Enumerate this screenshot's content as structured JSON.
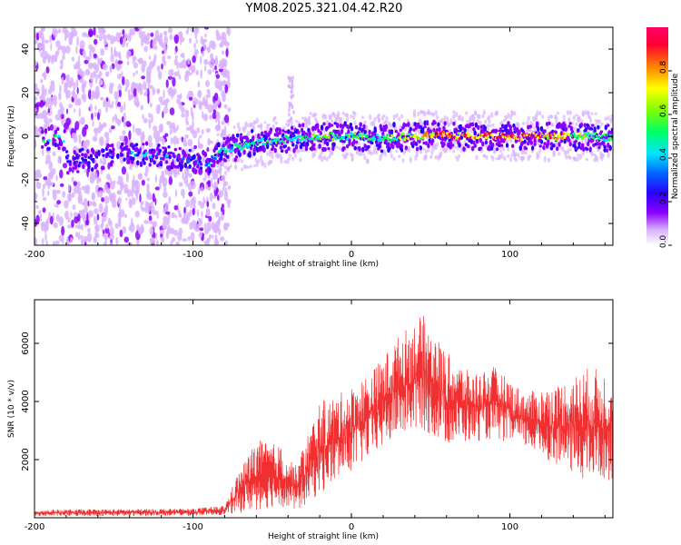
{
  "title": "YM08.2025.321.04.42.R20",
  "chart_data": [
    {
      "type": "heatmap",
      "name": "spectrogram",
      "xlabel": "Height of straight line (km)",
      "ylabel": "Frequency (Hz)",
      "xlim": [
        -200,
        165
      ],
      "ylim": [
        -50,
        50
      ],
      "xticks": [
        -200,
        -100,
        0,
        100
      ],
      "yticks": [
        -40,
        -20,
        0,
        20,
        40
      ],
      "colorbar": {
        "label": "Normalized spectral amplitude",
        "range": [
          0.0,
          1.0
        ],
        "ticks": [
          0.0,
          0.2,
          0.4,
          0.6,
          0.8
        ],
        "tick_labels": [
          "0.0",
          "0.2",
          "0.4",
          "0.6",
          "0.8"
        ],
        "colormap": [
          "#ffffff",
          "#d9b3ff",
          "#8b00ff",
          "#2a00ff",
          "#0066ff",
          "#00e5ff",
          "#00ff66",
          "#80ff00",
          "#ffff00",
          "#ff8000",
          "#ff0033",
          "#ff0066"
        ]
      },
      "noise_region_x": [
        -200,
        -85
      ],
      "signal_track": [
        {
          "x": -180,
          "f": -12,
          "amp": 0.35
        },
        {
          "x": -150,
          "f": -9,
          "amp": 0.3
        },
        {
          "x": -130,
          "f": -8,
          "amp": 0.45
        },
        {
          "x": -110,
          "f": -10,
          "amp": 0.4
        },
        {
          "x": -90,
          "f": -12,
          "amp": 0.45
        },
        {
          "x": -80,
          "f": -6,
          "amp": 0.5
        },
        {
          "x": -60,
          "f": -3,
          "amp": 0.55
        },
        {
          "x": -40,
          "f": -1,
          "amp": 0.55
        },
        {
          "x": -20,
          "f": 0,
          "amp": 0.6
        },
        {
          "x": 0,
          "f": 0,
          "amp": 0.6
        },
        {
          "x": 20,
          "f": -1,
          "amp": 0.55
        },
        {
          "x": 40,
          "f": 0,
          "amp": 0.7
        },
        {
          "x": 55,
          "f": 1,
          "amp": 0.9
        },
        {
          "x": 70,
          "f": 0,
          "amp": 0.85
        },
        {
          "x": 90,
          "f": 0,
          "amp": 0.95
        },
        {
          "x": 110,
          "f": 0,
          "amp": 0.9
        },
        {
          "x": 130,
          "f": 0,
          "amp": 0.85
        },
        {
          "x": 150,
          "f": 0,
          "amp": 0.6
        },
        {
          "x": 165,
          "f": -1,
          "amp": 0.55
        }
      ]
    },
    {
      "type": "line",
      "name": "snr",
      "xlabel": "Height of straight line (km)",
      "ylabel": "SNR (10 * v/v)",
      "xlim": [
        -200,
        165
      ],
      "ylim": [
        0,
        7500
      ],
      "xticks": [
        -200,
        -100,
        0,
        100
      ],
      "yticks": [
        2000,
        4000,
        6000
      ],
      "color": "#f03030",
      "envelope": [
        {
          "x": -200,
          "low": 50,
          "high": 280
        },
        {
          "x": -150,
          "low": 60,
          "high": 300
        },
        {
          "x": -100,
          "low": 70,
          "high": 320
        },
        {
          "x": -80,
          "low": 100,
          "high": 420
        },
        {
          "x": -72,
          "low": 150,
          "high": 1500
        },
        {
          "x": -60,
          "low": 250,
          "high": 2700
        },
        {
          "x": -45,
          "low": 400,
          "high": 2500
        },
        {
          "x": -35,
          "low": 200,
          "high": 1800
        },
        {
          "x": -20,
          "low": 800,
          "high": 4000
        },
        {
          "x": -10,
          "low": 1200,
          "high": 4200
        },
        {
          "x": 0,
          "low": 1600,
          "high": 4500
        },
        {
          "x": 15,
          "low": 2200,
          "high": 5200
        },
        {
          "x": 30,
          "low": 2800,
          "high": 6300
        },
        {
          "x": 45,
          "low": 3000,
          "high": 7000
        },
        {
          "x": 60,
          "low": 2500,
          "high": 5700
        },
        {
          "x": 75,
          "low": 2600,
          "high": 5000
        },
        {
          "x": 90,
          "low": 2700,
          "high": 5200
        },
        {
          "x": 110,
          "low": 2400,
          "high": 4300
        },
        {
          "x": 130,
          "low": 1800,
          "high": 4600
        },
        {
          "x": 150,
          "low": 1200,
          "high": 5200
        },
        {
          "x": 165,
          "low": 1300,
          "high": 5000
        }
      ]
    }
  ]
}
